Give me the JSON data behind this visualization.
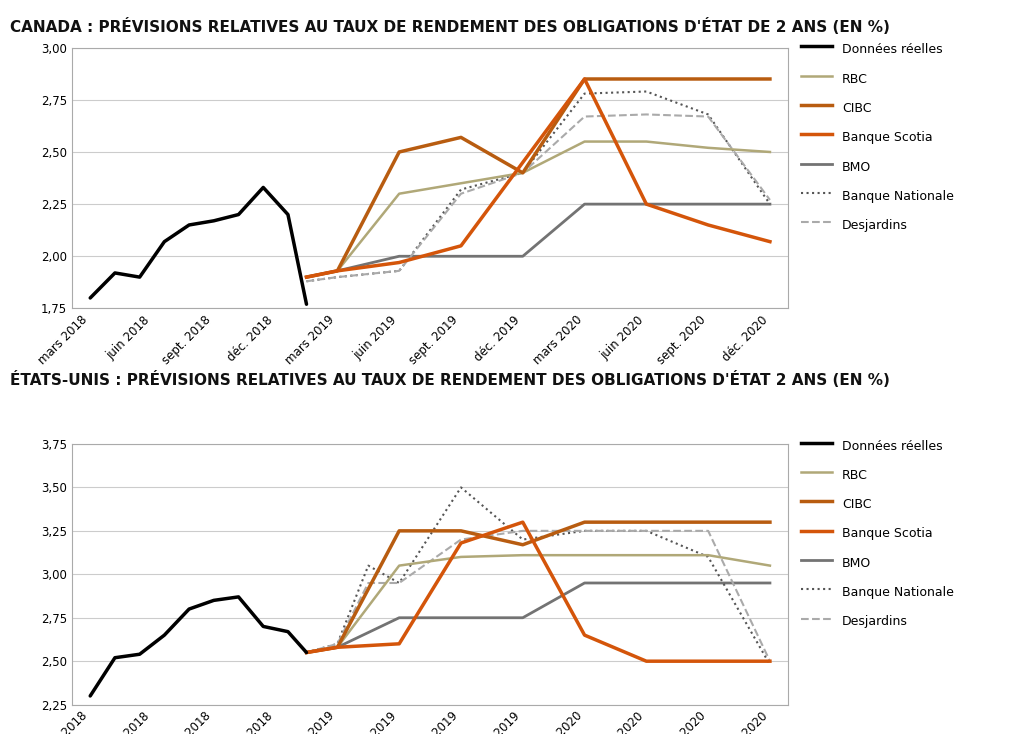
{
  "title1": "CANADA : PRÉVISIONS RELATIVES AU TAUX DE RENDEMENT DES OBLIGATIONS D'ÉTAT DE 2 ANS (EN %)",
  "title2": "ÉTATS-UNIS : PRÉVISIONS RELATIVES AU TAUX DE RENDEMENT DES OBLIGATIONS D'ÉTAT 2 ANS (EN %)",
  "x_labels": [
    "mars 2018",
    "juin 2018",
    "sept. 2018",
    "déc. 2018",
    "mars 2019",
    "juin 2019",
    "sept. 2019",
    "déc. 2019",
    "mars 2020",
    "juin 2020",
    "sept. 2020",
    "déc. 2020"
  ],
  "canada": {
    "donnees_reelles_x": [
      0,
      0.4,
      0.8,
      1.2,
      1.6,
      2.0,
      2.4,
      2.8,
      3.2,
      3.5
    ],
    "donnees_reelles_y": [
      1.8,
      1.92,
      1.9,
      2.07,
      2.15,
      2.17,
      2.2,
      2.33,
      2.2,
      1.77
    ],
    "rbc_x": [
      3.5,
      4,
      5,
      6,
      7,
      8,
      9,
      10,
      11
    ],
    "rbc_y": [
      1.9,
      1.93,
      2.3,
      2.35,
      2.4,
      2.55,
      2.55,
      2.52,
      2.5
    ],
    "cibc_x": [
      3.5,
      4,
      5,
      6,
      7,
      8,
      9,
      10,
      11
    ],
    "cibc_y": [
      1.9,
      1.93,
      2.5,
      2.57,
      2.4,
      2.85,
      2.85,
      2.85,
      2.85
    ],
    "banque_scotia_x": [
      3.5,
      4,
      5,
      6,
      7,
      8,
      9,
      10,
      11
    ],
    "banque_scotia_y": [
      1.9,
      1.93,
      1.97,
      2.05,
      2.45,
      2.85,
      2.25,
      2.15,
      2.07
    ],
    "bmo_x": [
      3.5,
      4,
      5,
      6,
      7,
      8,
      9,
      10,
      11
    ],
    "bmo_y": [
      1.9,
      1.93,
      2.0,
      2.0,
      2.0,
      2.25,
      2.25,
      2.25,
      2.25
    ],
    "banque_nationale_x": [
      3.5,
      4,
      5,
      6,
      7,
      8,
      9,
      10,
      11
    ],
    "banque_nationale_y": [
      1.88,
      1.9,
      1.93,
      2.32,
      2.4,
      2.78,
      2.79,
      2.68,
      2.25
    ],
    "desjardins_x": [
      3.5,
      4,
      5,
      6,
      7,
      8,
      9,
      10,
      11
    ],
    "desjardins_y": [
      1.88,
      1.9,
      1.93,
      2.3,
      2.4,
      2.67,
      2.68,
      2.67,
      2.27
    ],
    "ylim": [
      1.75,
      3.0
    ],
    "yticks": [
      1.75,
      2.0,
      2.25,
      2.5,
      2.75,
      3.0
    ]
  },
  "us": {
    "donnees_reelles_x": [
      0,
      0.4,
      0.8,
      1.2,
      1.6,
      2.0,
      2.4,
      2.8,
      3.2,
      3.5
    ],
    "donnees_reelles_y": [
      2.3,
      2.52,
      2.54,
      2.65,
      2.8,
      2.85,
      2.87,
      2.7,
      2.67,
      2.55
    ],
    "rbc_x": [
      3.5,
      4,
      5,
      6,
      7,
      8,
      9,
      10,
      11
    ],
    "rbc_y": [
      2.55,
      2.58,
      3.05,
      3.1,
      3.11,
      3.11,
      3.11,
      3.11,
      3.05
    ],
    "cibc_x": [
      3.5,
      4,
      5,
      6,
      7,
      8,
      9,
      10,
      11
    ],
    "cibc_y": [
      2.55,
      2.58,
      3.25,
      3.25,
      3.17,
      3.3,
      3.3,
      3.3,
      3.3
    ],
    "banque_scotia_x": [
      3.5,
      4,
      5,
      6,
      7,
      8,
      9,
      10,
      11
    ],
    "banque_scotia_y": [
      2.55,
      2.58,
      2.6,
      3.18,
      3.3,
      2.65,
      2.5,
      2.5,
      2.5
    ],
    "bmo_x": [
      3.5,
      4,
      5,
      6,
      7,
      8,
      9,
      10,
      11
    ],
    "bmo_y": [
      2.55,
      2.58,
      2.75,
      2.75,
      2.75,
      2.95,
      2.95,
      2.95,
      2.95
    ],
    "banque_nationale_x": [
      3.5,
      4,
      4.5,
      5,
      6,
      7,
      8,
      9,
      10,
      11
    ],
    "banque_nationale_y": [
      2.55,
      2.6,
      3.05,
      2.95,
      3.5,
      3.2,
      3.25,
      3.25,
      3.1,
      2.48
    ],
    "desjardins_x": [
      3.5,
      4,
      4.5,
      5,
      6,
      7,
      8,
      9,
      10,
      11
    ],
    "desjardins_y": [
      2.55,
      2.6,
      2.95,
      2.95,
      3.2,
      3.25,
      3.25,
      3.25,
      3.25,
      2.5
    ],
    "ylim": [
      2.25,
      3.75
    ],
    "yticks": [
      2.25,
      2.5,
      2.75,
      3.0,
      3.25,
      3.5,
      3.75
    ]
  },
  "colors": {
    "donnees_reelles": "#000000",
    "rbc": "#b0a878",
    "cibc": "#b85c10",
    "banque_scotia": "#d4550a",
    "bmo": "#737373",
    "banque_nationale": "#555555",
    "desjardins": "#aaaaaa"
  },
  "legend_labels": [
    "Données réelles",
    "RBC",
    "CIBC",
    "Banque Scotia",
    "BMO",
    "Banque Nationale",
    "Desjardins"
  ],
  "background_color": "#ffffff",
  "title_fontsize": 11,
  "tick_fontsize": 8.5,
  "legend_fontsize": 9
}
